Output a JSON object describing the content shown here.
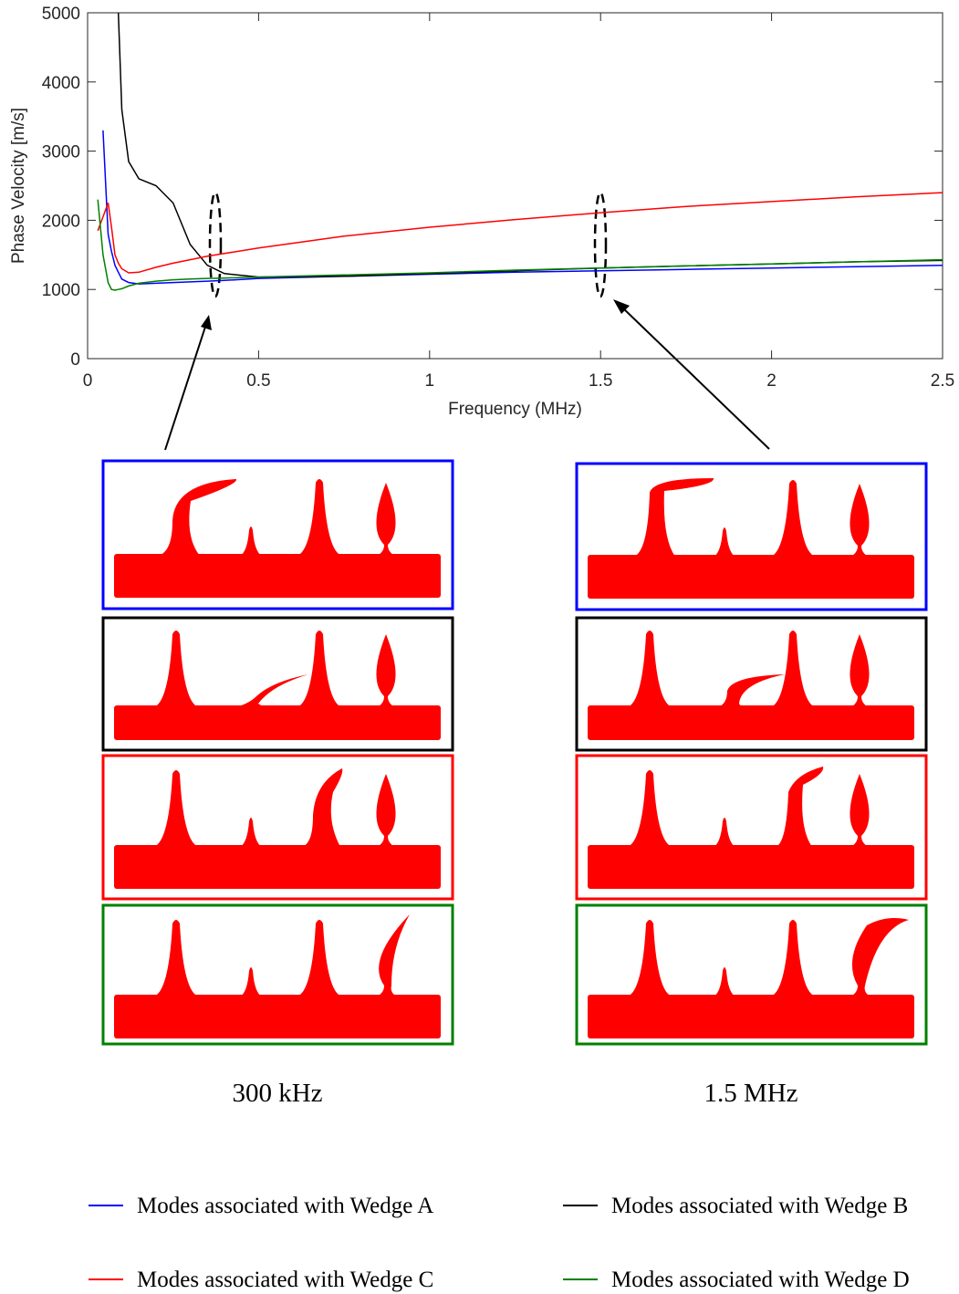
{
  "chart_data": {
    "type": "line",
    "x_label": "Frequency (MHz)",
    "y_label": "Phase Velocity [m/s]",
    "x": [
      0.03,
      0.045,
      0.06,
      0.07,
      0.08,
      0.09,
      0.1,
      0.12,
      0.15,
      0.2,
      0.25,
      0.3,
      0.35,
      0.4,
      0.5,
      0.75,
      1,
      1.25,
      1.5,
      1.75,
      2,
      2.25,
      2.5
    ],
    "series": [
      {
        "name": "Modes associated with Wedge A",
        "color": "#0000ff",
        "values": [
          null,
          3300,
          1800,
          1550,
          1350,
          1250,
          1150,
          1100,
          1080,
          1090,
          1100,
          1110,
          1120,
          1130,
          1160,
          1190,
          1220,
          1250,
          1270,
          1290,
          1310,
          1330,
          1350
        ]
      },
      {
        "name": "Modes associated with Wedge B",
        "color": "#000000",
        "values": [
          null,
          null,
          null,
          null,
          null,
          5000,
          3600,
          2850,
          2600,
          2500,
          2250,
          1650,
          1350,
          1230,
          1180,
          1190,
          1230,
          1270,
          1310,
          1340,
          1370,
          1400,
          1420
        ]
      },
      {
        "name": "Modes associated with Wedge C",
        "color": "#ff0000",
        "values": [
          1850,
          2050,
          2250,
          1900,
          1500,
          1380,
          1300,
          1240,
          1250,
          1320,
          1380,
          1430,
          1480,
          1520,
          1600,
          1770,
          1900,
          2010,
          2110,
          2200,
          2270,
          2340,
          2400
        ]
      },
      {
        "name": "Modes associated with Wedge D",
        "color": "#008000",
        "values": [
          2300,
          1500,
          1100,
          1000,
          990,
          1000,
          1010,
          1050,
          1090,
          1120,
          1140,
          1150,
          1160,
          1165,
          1180,
          1210,
          1240,
          1280,
          1310,
          1340,
          1370,
          1400,
          1430
        ]
      }
    ],
    "xlim": [
      0,
      2.5
    ],
    "xticks": [
      0,
      0.5,
      1,
      1.5,
      2,
      2.5
    ],
    "ylim": [
      0,
      5000
    ],
    "yticks": [
      0,
      1000,
      2000,
      3000,
      4000,
      5000
    ],
    "annotations": [
      "300 kHz",
      "1.5 MHz"
    ],
    "legend_position": "bottom"
  }
}
